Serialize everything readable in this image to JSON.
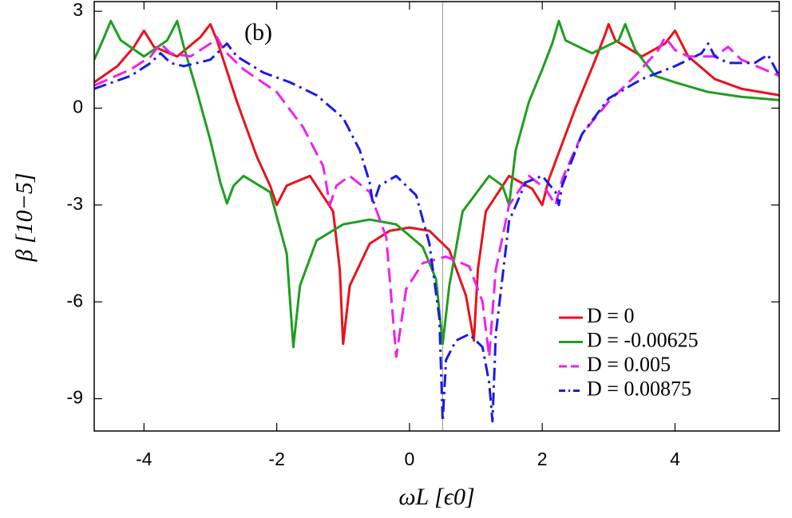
{
  "chart_data": {
    "type": "line",
    "annotation": "(b)",
    "x_label": "ωL [ϵ0]",
    "y_label": "β [10−5]",
    "xlim": [
      -4.75,
      5.57
    ],
    "ylim": [
      -10,
      3.3
    ],
    "xticks": [
      -4,
      -2,
      0,
      2,
      4
    ],
    "yticks": [
      3,
      0,
      -3,
      -6,
      -9
    ],
    "reference_line_x": 0.5,
    "legend": "lower right",
    "series": [
      {
        "name": "D = 0",
        "color": "#e8121b",
        "dash": "none",
        "x": [
          -4.75,
          -4.4,
          -4.15,
          -4,
          -3.85,
          -3.5,
          -3.15,
          -3,
          -2.9,
          -2.6,
          -2.3,
          -2.1,
          -2,
          -1.85,
          -1.5,
          -1.15,
          -1.05,
          -1,
          -0.9,
          -0.6,
          -0.3,
          0,
          0.3,
          0.6,
          0.85,
          0.97,
          1.03,
          1.15,
          1.5,
          1.85,
          2,
          2.1,
          2.5,
          2.8,
          2.95,
          3,
          3.1,
          3.5,
          3.85,
          4,
          4.2,
          4.6,
          5,
          5.57
        ],
        "values": [
          0.8,
          1.3,
          1.9,
          2.4,
          1.9,
          1.6,
          2.2,
          2.6,
          2.1,
          0.2,
          -1.5,
          -2.4,
          -3.0,
          -2.4,
          -2.1,
          -3.2,
          -5,
          -7.3,
          -5.5,
          -4.2,
          -3.8,
          -3.7,
          -3.8,
          -4.4,
          -5.8,
          -7.2,
          -5,
          -3.2,
          -2.1,
          -2.5,
          -3.0,
          -2.2,
          0,
          1.5,
          2.3,
          2.6,
          2.1,
          1.6,
          2.0,
          2.4,
          1.6,
          0.9,
          0.6,
          0.4
        ]
      },
      {
        "name": "D = -0.00625",
        "color": "#1f9e1f",
        "dash": "none",
        "x": [
          -4.75,
          -4.6,
          -4.5,
          -4.35,
          -4,
          -3.65,
          -3.5,
          -3.4,
          -3.2,
          -3.0,
          -2.85,
          -2.75,
          -2.65,
          -2.5,
          -2.1,
          -1.85,
          -1.75,
          -1.65,
          -1.4,
          -1,
          -0.6,
          -0.2,
          0.2,
          0.4,
          0.5,
          0.6,
          0.8,
          1.2,
          1.4,
          1.5,
          1.6,
          1.8,
          2.0,
          2.15,
          2.25,
          2.35,
          2.75,
          3.15,
          3.25,
          3.4,
          3.7,
          4,
          4.5,
          5,
          5.57
        ],
        "values": [
          1.5,
          2.2,
          2.7,
          2.1,
          1.6,
          2.1,
          2.7,
          1.9,
          0.5,
          -1.0,
          -2.3,
          -2.95,
          -2.4,
          -2.1,
          -2.6,
          -4.5,
          -7.4,
          -5.5,
          -4.1,
          -3.6,
          -3.45,
          -3.6,
          -4.3,
          -5.3,
          -7.3,
          -5.5,
          -3.2,
          -2.1,
          -2.4,
          -3.0,
          -1.3,
          0.2,
          1.2,
          2.0,
          2.7,
          2.1,
          1.7,
          2.1,
          2.6,
          1.8,
          1.0,
          0.8,
          0.5,
          0.35,
          0.25
        ]
      },
      {
        "name": "D = 0.005",
        "color": "#ec22ec",
        "dash": "18,8",
        "x": [
          -4.75,
          -4.2,
          -3.9,
          -3.75,
          -3.6,
          -3.3,
          -3.0,
          -2.9,
          -2.8,
          -2.5,
          -2.0,
          -1.6,
          -1.3,
          -1.2,
          -1.1,
          -0.9,
          -0.6,
          -0.35,
          -0.2,
          -0.05,
          0.2,
          0.55,
          0.9,
          1.1,
          1.2,
          1.3,
          1.5,
          1.8,
          2.05,
          2.2,
          2.3,
          2.6,
          3.0,
          3.4,
          3.75,
          3.85,
          4.0,
          4.2,
          4.6,
          4.8,
          5.0,
          5.57
        ],
        "values": [
          0.7,
          1.2,
          1.6,
          2.0,
          1.7,
          1.6,
          2.0,
          2.2,
          1.8,
          1.2,
          0.5,
          -0.6,
          -1.8,
          -3.0,
          -2.4,
          -2.1,
          -2.6,
          -4.0,
          -7.7,
          -5.6,
          -4.8,
          -4.6,
          -4.9,
          -6.0,
          -7.7,
          -5.0,
          -3.0,
          -2.1,
          -2.5,
          -3.0,
          -2.2,
          -0.8,
          0.2,
          1.0,
          1.8,
          2.2,
          1.8,
          1.6,
          1.6,
          1.9,
          1.5,
          1.0
        ]
      },
      {
        "name": "D = 0.00875",
        "color": "#1a1ae6",
        "dash": "16,6,3,6",
        "x": [
          -4.75,
          -4.2,
          -3.9,
          -3.75,
          -3.6,
          -3.4,
          -3.0,
          -2.75,
          -2.6,
          -2.2,
          -1.8,
          -1.4,
          -1.0,
          -0.75,
          -0.6,
          -0.55,
          -0.45,
          -0.2,
          0.1,
          0.3,
          0.45,
          0.5,
          0.55,
          0.7,
          0.9,
          1.1,
          1.2,
          1.25,
          1.3,
          1.5,
          1.75,
          2.0,
          2.2,
          2.25,
          2.3,
          2.6,
          3.0,
          3.5,
          4.0,
          4.4,
          4.5,
          4.6,
          4.8,
          5.2,
          5.4,
          5.57
        ],
        "values": [
          0.6,
          1.0,
          1.4,
          1.7,
          1.4,
          1.3,
          1.5,
          2.0,
          1.6,
          1.1,
          0.8,
          0.4,
          -0.3,
          -1.3,
          -2.3,
          -3.0,
          -2.4,
          -2.1,
          -2.7,
          -4.2,
          -6.5,
          -9.7,
          -7.8,
          -7.2,
          -7.0,
          -7.4,
          -8.5,
          -9.7,
          -7.0,
          -3.5,
          -2.3,
          -2.1,
          -2.6,
          -3.0,
          -2.4,
          -0.8,
          0.3,
          0.9,
          1.3,
          1.7,
          2.0,
          1.6,
          1.4,
          1.4,
          1.65,
          1.0
        ]
      }
    ]
  }
}
